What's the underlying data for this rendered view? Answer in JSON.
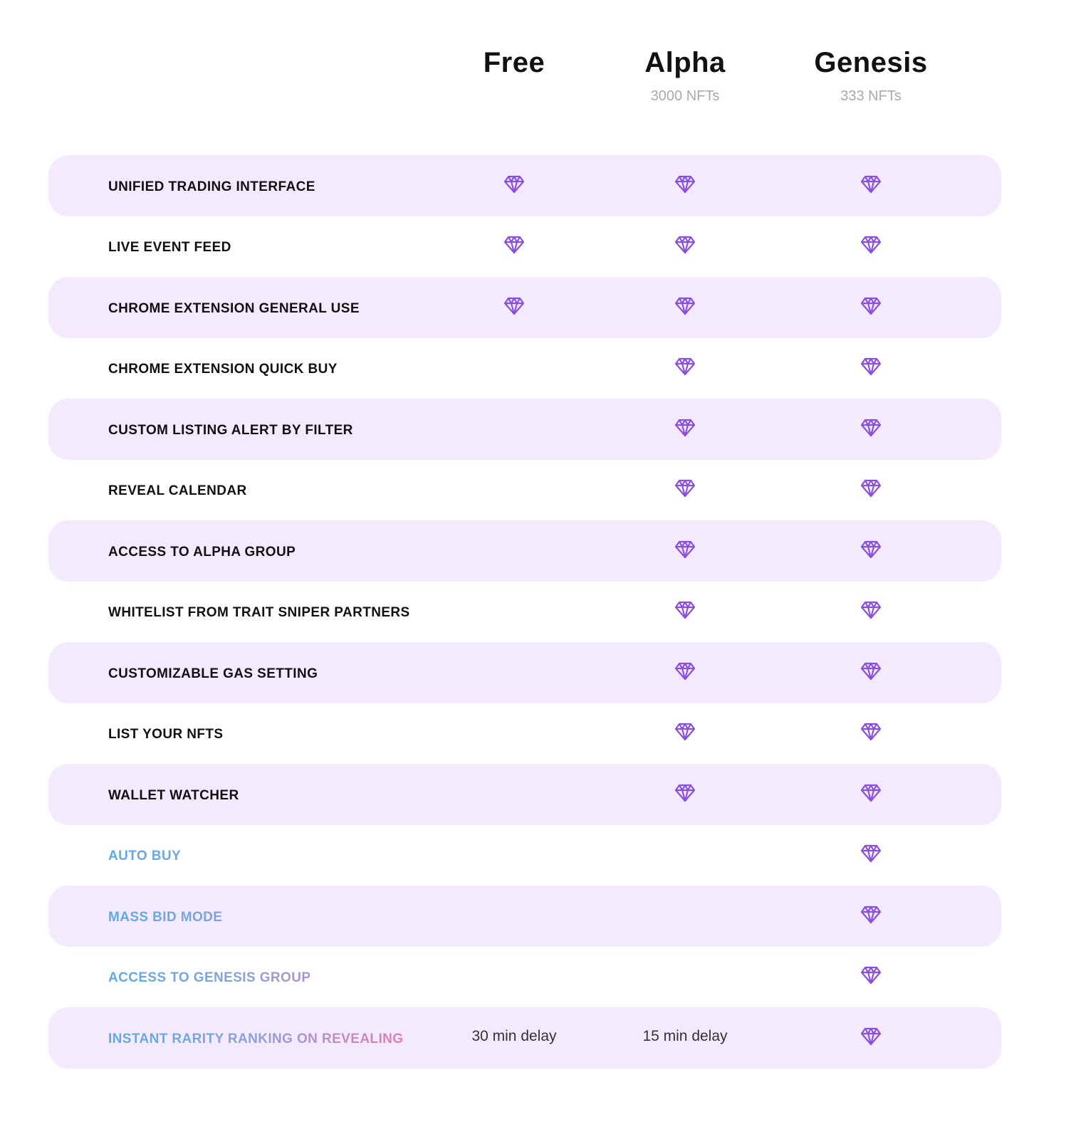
{
  "colors": {
    "diamond": "#8a4fe0",
    "row_shade": "#f3ebfd",
    "gradient_start": "#5aaae8",
    "gradient_end": "#e37bb7"
  },
  "plans": [
    {
      "name": "Free",
      "sub": ""
    },
    {
      "name": "Alpha",
      "sub": "3000 NFTs"
    },
    {
      "name": "Genesis",
      "sub": "333 NFTs"
    }
  ],
  "features": [
    {
      "label": "UNIFIED TRADING INTERFACE",
      "highlight": false,
      "cells": [
        "diamond-icon",
        "diamond-icon",
        "diamond-icon"
      ]
    },
    {
      "label": "LIVE EVENT FEED",
      "highlight": false,
      "cells": [
        "diamond-icon",
        "diamond-icon",
        "diamond-icon"
      ]
    },
    {
      "label": "CHROME EXTENSION GENERAL USE",
      "highlight": false,
      "cells": [
        "diamond-icon",
        "diamond-icon",
        "diamond-icon"
      ]
    },
    {
      "label": "CHROME EXTENSION QUICK BUY",
      "highlight": false,
      "cells": [
        "",
        "diamond-icon",
        "diamond-icon"
      ]
    },
    {
      "label": "CUSTOM LISTING ALERT BY FILTER",
      "highlight": false,
      "cells": [
        "",
        "diamond-icon",
        "diamond-icon"
      ]
    },
    {
      "label": "REVEAL CALENDAR",
      "highlight": false,
      "cells": [
        "",
        "diamond-icon",
        "diamond-icon"
      ]
    },
    {
      "label": "ACCESS TO ALPHA GROUP",
      "highlight": false,
      "cells": [
        "",
        "diamond-icon",
        "diamond-icon"
      ]
    },
    {
      "label": "WHITELIST FROM TRAIT SNIPER PARTNERS",
      "highlight": false,
      "cells": [
        "",
        "diamond-icon",
        "diamond-icon"
      ]
    },
    {
      "label": "CUSTOMIZABLE GAS SETTING",
      "highlight": false,
      "cells": [
        "",
        "diamond-icon",
        "diamond-icon"
      ]
    },
    {
      "label": "LIST YOUR NFTS",
      "highlight": false,
      "cells": [
        "",
        "diamond-icon",
        "diamond-icon"
      ]
    },
    {
      "label": "WALLET WATCHER",
      "highlight": false,
      "cells": [
        "",
        "diamond-icon",
        "diamond-icon"
      ]
    },
    {
      "label": "AUTO BUY",
      "highlight": true,
      "cells": [
        "",
        "",
        "diamond-icon"
      ]
    },
    {
      "label": "MASS BID MODE",
      "highlight": true,
      "cells": [
        "",
        "",
        "diamond-icon"
      ]
    },
    {
      "label": "ACCESS TO GENESIS GROUP",
      "highlight": true,
      "cells": [
        "",
        "",
        "diamond-icon"
      ]
    },
    {
      "label": "INSTANT RARITY RANKING ON REVEALING",
      "highlight": true,
      "cells": [
        "30 min delay",
        "15 min delay",
        "diamond-icon"
      ]
    }
  ]
}
